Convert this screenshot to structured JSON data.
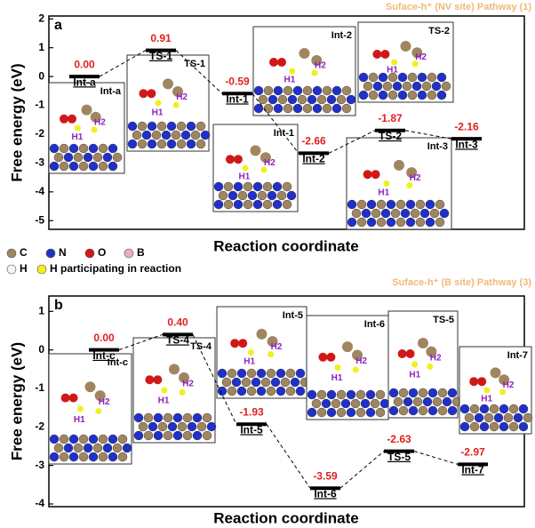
{
  "chart_data": [
    {
      "type": "energy-level",
      "panel": "a",
      "subtitle": "Suface-h⁺ (NV site)  Pathway (1)",
      "y_label": "Free energy (eV)",
      "x_label": "Reaction coordinate",
      "categories": [
        "Int-a",
        "TS-1",
        "Int-1",
        "Int-2",
        "TS-2",
        "Int-3"
      ],
      "values": [
        0.0,
        0.91,
        -0.59,
        -2.66,
        -1.87,
        -2.16
      ],
      "value_labels": [
        "0.00",
        "0.91",
        "-0.59",
        "-2.66",
        "-1.87",
        "-2.16"
      ],
      "color": "#000000",
      "label_color": "#e02020",
      "ylim": [
        -5.3,
        2.1
      ],
      "yticks": [
        2,
        1,
        0,
        -1,
        -2,
        -3,
        -4,
        -5
      ],
      "insets": [
        {
          "label": "Int-a",
          "atoms": [
            "H1",
            "H2"
          ]
        },
        {
          "label": "TS-1",
          "atoms": [
            "H1",
            "H2"
          ]
        },
        {
          "label": "Int-1",
          "atoms": [
            "H1",
            "H2"
          ]
        },
        {
          "label": "Int-2",
          "atoms": [
            "H1",
            "H2"
          ]
        },
        {
          "label": "TS-2",
          "atoms": [
            "H1",
            "H2"
          ]
        },
        {
          "label": "Int-3",
          "atoms": [
            "H1",
            "H2"
          ]
        }
      ],
      "legend": [
        {
          "name": "C",
          "color": "#a08660"
        },
        {
          "name": "N",
          "color": "#2030c8"
        },
        {
          "name": "O",
          "color": "#d01818"
        },
        {
          "name": "B",
          "color": "#e8b0b8"
        },
        {
          "name": "H",
          "color": "#f4f4f4"
        },
        {
          "name": "H participating in reaction",
          "color": "#f0f020"
        }
      ]
    },
    {
      "type": "energy-level",
      "panel": "b",
      "subtitle": "Suface-h⁺ (B site)  Pathway (3)",
      "y_label": "Free energy (eV)",
      "x_label": "Reaction coordinate",
      "categories": [
        "Int-c",
        "TS-4",
        "Int-5",
        "Int-6",
        "TS-5",
        "Int-7"
      ],
      "values": [
        0.0,
        0.4,
        -1.93,
        -3.59,
        -2.63,
        -2.97
      ],
      "value_labels": [
        "0.00",
        "0.40",
        "-1.93",
        "-3.59",
        "-2.63",
        "-2.97"
      ],
      "color": "#000000",
      "label_color": "#e02020",
      "ylim": [
        -4.07,
        1.4
      ],
      "yticks": [
        1,
        0,
        -1,
        -2,
        -3,
        -4
      ],
      "insets": [
        {
          "label": "Int-c",
          "atoms": [
            "H1",
            "H2"
          ]
        },
        {
          "label": "TS-4",
          "atoms": [
            "H1",
            "H2"
          ]
        },
        {
          "label": "Int-5",
          "atoms": [
            "H1",
            "H2"
          ]
        },
        {
          "label": "Int-6",
          "atoms": [
            "H1",
            "H2"
          ]
        },
        {
          "label": "TS-5",
          "atoms": [
            "H1",
            "H2"
          ]
        },
        {
          "label": "Int-7",
          "atoms": [
            "H1",
            "H2"
          ]
        }
      ]
    }
  ]
}
